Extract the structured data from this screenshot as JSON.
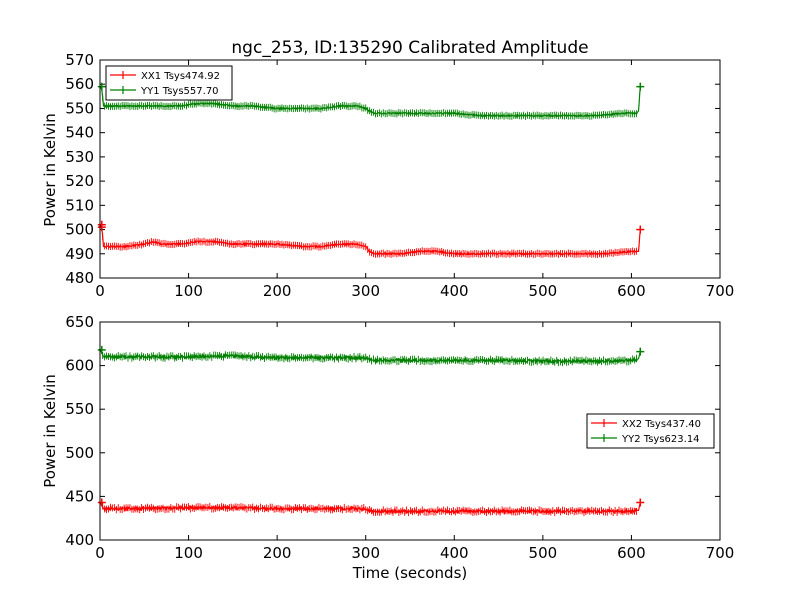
{
  "chart_data": [
    {
      "type": "line",
      "title": "ngc_253, ID:135290 Calibrated Amplitude",
      "xlabel": "",
      "ylabel": "Power in Kelvin",
      "xlim": [
        0,
        700
      ],
      "ylim": [
        480,
        570
      ],
      "xticks": [
        0,
        100,
        200,
        300,
        400,
        500,
        600,
        700
      ],
      "yticks": [
        480,
        490,
        500,
        510,
        520,
        530,
        540,
        550,
        560,
        570
      ],
      "grid": false,
      "legend_position": "upper-left",
      "series": [
        {
          "name": "XX1 Tsys474.92",
          "color": "#ff0000",
          "x": [
            0,
            2,
            4,
            10,
            30,
            50,
            60,
            70,
            90,
            110,
            120,
            130,
            150,
            170,
            200,
            230,
            250,
            270,
            290,
            300,
            304,
            310,
            340,
            360,
            380,
            400,
            430,
            460,
            500,
            540,
            570,
            600,
            606,
            608,
            610
          ],
          "y": [
            502,
            501,
            493,
            493,
            493,
            494,
            495,
            494,
            494,
            495,
            495,
            495,
            494,
            494,
            494,
            493,
            493,
            494,
            494,
            493,
            491,
            490,
            490,
            491,
            491,
            490,
            490,
            490,
            490,
            490,
            490,
            491,
            491,
            491,
            500
          ],
          "markers": [
            [
              2,
              502
            ],
            [
              2,
              501
            ],
            [
              610,
              500
            ]
          ]
        },
        {
          "name": "YY1 Tsys557.70",
          "color": "#008000",
          "x": [
            0,
            2,
            4,
            10,
            30,
            50,
            70,
            90,
            110,
            130,
            150,
            170,
            200,
            230,
            250,
            270,
            290,
            300,
            304,
            310,
            340,
            370,
            400,
            430,
            460,
            500,
            530,
            560,
            590,
            606,
            608,
            610
          ],
          "y": [
            559,
            558,
            551,
            551,
            551,
            551,
            551,
            551,
            552,
            552,
            551,
            551,
            550,
            550,
            550,
            551,
            551,
            550,
            549,
            548,
            548,
            548,
            548,
            547,
            547,
            547,
            547,
            547,
            548,
            548,
            549,
            559
          ],
          "markers": [
            [
              2,
              559
            ],
            [
              610,
              559
            ]
          ]
        }
      ]
    },
    {
      "type": "line",
      "title": "",
      "xlabel": "Time (seconds)",
      "ylabel": "Power in Kelvin",
      "xlim": [
        0,
        700
      ],
      "ylim": [
        400,
        650
      ],
      "xticks": [
        0,
        100,
        200,
        300,
        400,
        500,
        600,
        700
      ],
      "yticks": [
        400,
        450,
        500,
        550,
        600,
        650
      ],
      "grid": false,
      "legend_position": "center-right",
      "series": [
        {
          "name": "XX2 Tsys437.40",
          "color": "#ff0000",
          "x": [
            0,
            2,
            4,
            10,
            50,
            100,
            130,
            150,
            200,
            250,
            300,
            304,
            310,
            350,
            400,
            450,
            500,
            550,
            600,
            606,
            608,
            610
          ],
          "y": [
            443,
            440,
            436,
            436,
            436,
            437,
            437,
            437,
            436,
            436,
            436,
            434,
            433,
            433,
            433,
            433,
            433,
            433,
            433,
            434,
            434,
            443
          ],
          "markers": [
            [
              2,
              443
            ],
            [
              610,
              443
            ]
          ]
        },
        {
          "name": "YY2 Tsys623.14",
          "color": "#008000",
          "x": [
            0,
            2,
            4,
            10,
            50,
            100,
            130,
            150,
            200,
            250,
            300,
            304,
            310,
            350,
            400,
            450,
            500,
            550,
            600,
            606,
            608,
            610
          ],
          "y": [
            618,
            615,
            610,
            610,
            610,
            610,
            611,
            611,
            609,
            609,
            609,
            607,
            606,
            606,
            606,
            606,
            605,
            605,
            606,
            607,
            608,
            616
          ],
          "markers": [
            [
              2,
              618
            ],
            [
              610,
              616
            ]
          ]
        }
      ]
    }
  ]
}
